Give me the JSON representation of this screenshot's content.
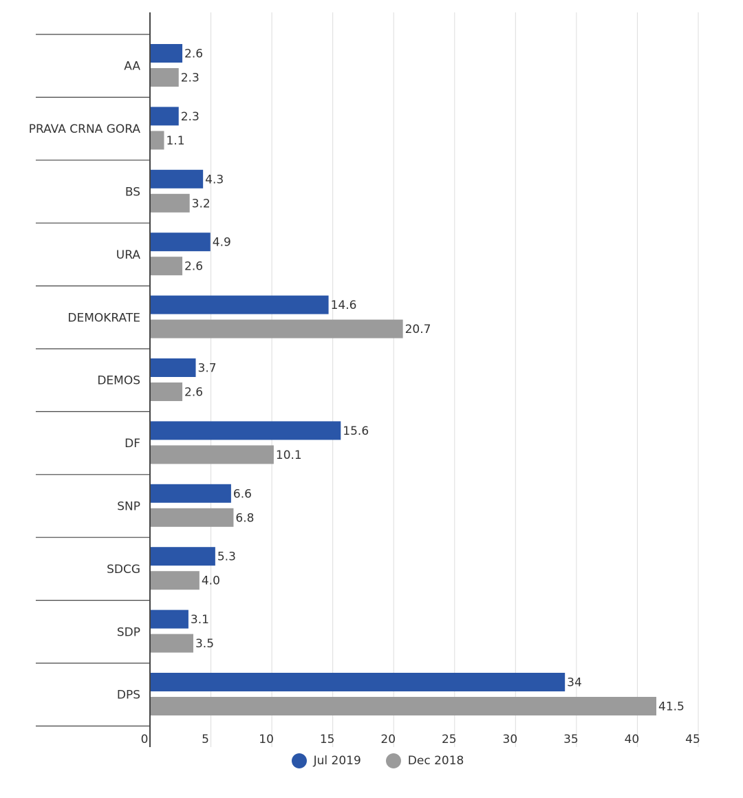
{
  "chart_data": {
    "type": "bar",
    "orientation": "horizontal",
    "categories": [
      "AA",
      "PRAVA CRNA GORA",
      "BS",
      "URA",
      "DEMOKRATE",
      "DEMOS",
      "DF",
      "SNP",
      "SDCG",
      "SDP",
      "DPS"
    ],
    "series": [
      {
        "name": "Jul 2019",
        "color": "#2a56a8",
        "values": [
          2.6,
          2.3,
          4.3,
          4.9,
          14.6,
          3.7,
          15.6,
          6.6,
          5.3,
          3.1,
          34
        ],
        "labels": [
          "2.6",
          "2.3",
          "4.3",
          "4.9",
          "14.6",
          "3.7",
          "15.6",
          "6.6",
          "5.3",
          "3.1",
          "34"
        ]
      },
      {
        "name": "Dec 2018",
        "color": "#9b9b9b",
        "values": [
          2.3,
          1.1,
          3.2,
          2.6,
          20.7,
          2.6,
          10.1,
          6.8,
          4.0,
          3.5,
          41.5
        ],
        "labels": [
          "2.3",
          "1.1",
          "3.2",
          "2.6",
          "20.7",
          "2.6",
          "10.1",
          "6.8",
          "4.0",
          "3.5",
          "41.5"
        ]
      }
    ],
    "xlim": [
      0,
      45
    ],
    "xticks": [
      "0",
      "5",
      "10",
      "15",
      "20",
      "25",
      "30",
      "35",
      "40",
      "45"
    ],
    "grid": true,
    "legend_position": "bottom-center",
    "title": "",
    "xlabel": "",
    "ylabel": ""
  }
}
